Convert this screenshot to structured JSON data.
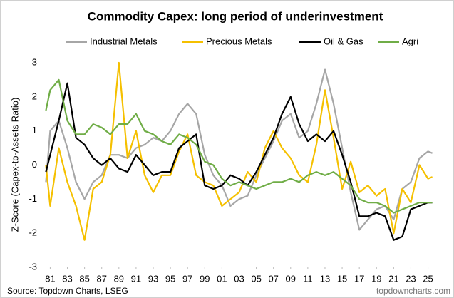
{
  "chart_data": {
    "type": "line",
    "title": "Commodity Capex: long period of underinvestment",
    "y_label": "Z-Score (Capex-to-Assets Ratio)",
    "source": "Source: Topdown Charts, LSEG",
    "watermark": "topdowncharts.com",
    "legend": "top",
    "x": [
      1980.5,
      1981,
      1982,
      1983,
      1984,
      1985,
      1986,
      1987,
      1988,
      1989,
      1990,
      1991,
      1992,
      1993,
      1994,
      1995,
      1996,
      1997,
      1998,
      1999,
      2000,
      2001,
      2002,
      2003,
      2004,
      2005,
      2006,
      2007,
      2008,
      2009,
      2010,
      2011,
      2012,
      2013,
      2014,
      2015,
      2016,
      2017,
      2018,
      2019,
      2020,
      2021,
      2022,
      2023,
      2024,
      2025,
      2025.5
    ],
    "xlim": [
      1980.3,
      2026.2
    ],
    "xticks": [
      {
        "value": 1981,
        "label": "81"
      },
      {
        "value": 1983,
        "label": "83"
      },
      {
        "value": 1985,
        "label": "85"
      },
      {
        "value": 1987,
        "label": "87"
      },
      {
        "value": 1989,
        "label": "89"
      },
      {
        "value": 1991,
        "label": "91"
      },
      {
        "value": 1993,
        "label": "93"
      },
      {
        "value": 1995,
        "label": "95"
      },
      {
        "value": 1997,
        "label": "97"
      },
      {
        "value": 1999,
        "label": "99"
      },
      {
        "value": 2001,
        "label": "01"
      },
      {
        "value": 2003,
        "label": "03"
      },
      {
        "value": 2005,
        "label": "05"
      },
      {
        "value": 2007,
        "label": "07"
      },
      {
        "value": 2009,
        "label": "09"
      },
      {
        "value": 2011,
        "label": "11"
      },
      {
        "value": 2013,
        "label": "13"
      },
      {
        "value": 2015,
        "label": "15"
      },
      {
        "value": 2017,
        "label": "17"
      },
      {
        "value": 2019,
        "label": "19"
      },
      {
        "value": 2021,
        "label": "21"
      },
      {
        "value": 2023,
        "label": "23"
      },
      {
        "value": 2025,
        "label": "25"
      }
    ],
    "ylim": [
      -3,
      3
    ],
    "yticks": [
      -3,
      -2,
      -1,
      0,
      1,
      2,
      3
    ],
    "series": [
      {
        "name": "Industrial Metals",
        "color": "#a6a6a6",
        "values": [
          -0.5,
          1.0,
          1.3,
          0.5,
          -0.5,
          -1.0,
          -0.5,
          -0.3,
          0.3,
          0.3,
          0.2,
          0.5,
          0.6,
          0.8,
          0.7,
          1.0,
          1.5,
          1.8,
          1.5,
          0.3,
          -0.3,
          -0.6,
          -1.2,
          -1.0,
          -0.9,
          -0.3,
          0.2,
          0.7,
          1.3,
          1.5,
          0.8,
          1.0,
          1.8,
          2.8,
          1.8,
          0.5,
          -0.8,
          -1.9,
          -1.6,
          -1.3,
          -1.2,
          -1.6,
          -0.7,
          -0.5,
          0.2,
          0.4,
          0.35
        ]
      },
      {
        "name": "Precious Metals",
        "color": "#f5c000",
        "values": [
          0.0,
          -1.2,
          0.5,
          -0.5,
          -1.2,
          -2.2,
          -0.7,
          -0.5,
          0.3,
          3.0,
          0.2,
          1.0,
          -0.3,
          -0.8,
          -0.3,
          -0.3,
          0.4,
          0.9,
          -0.3,
          -0.5,
          -0.6,
          -1.2,
          -1.0,
          -0.8,
          -0.2,
          -0.5,
          0.5,
          1.0,
          0.5,
          0.2,
          -0.3,
          -0.5,
          0.6,
          2.2,
          0.8,
          -0.7,
          0.1,
          -0.8,
          -0.6,
          -0.9,
          -0.7,
          -2.0,
          -0.7,
          -1.1,
          0.0,
          -0.4,
          -0.35
        ]
      },
      {
        "name": "Oil & Gas",
        "color": "#000000",
        "values": [
          -0.2,
          0.3,
          1.3,
          2.4,
          0.8,
          0.6,
          0.2,
          0.0,
          0.2,
          -0.1,
          -0.2,
          0.3,
          0.0,
          -0.3,
          -0.2,
          -0.2,
          0.5,
          0.7,
          0.9,
          -0.6,
          -0.7,
          -0.6,
          -0.3,
          -0.4,
          -0.6,
          -0.2,
          0.3,
          0.8,
          1.5,
          2.0,
          1.2,
          0.7,
          0.9,
          0.7,
          1.0,
          0.3,
          -0.5,
          -1.5,
          -1.5,
          -1.4,
          -1.5,
          -2.2,
          -2.1,
          -1.3,
          -1.2,
          -1.1,
          -1.1
        ]
      },
      {
        "name": "Agri",
        "color": "#70ad47",
        "values": [
          1.6,
          2.2,
          2.5,
          1.3,
          0.9,
          0.9,
          1.2,
          1.1,
          0.9,
          1.2,
          1.2,
          1.5,
          1.0,
          0.9,
          0.7,
          0.6,
          0.9,
          0.8,
          0.6,
          0.1,
          0.0,
          -0.4,
          -0.6,
          -0.5,
          -0.6,
          -0.7,
          -0.6,
          -0.5,
          -0.5,
          -0.4,
          -0.5,
          -0.3,
          -0.2,
          -0.3,
          -0.2,
          -0.4,
          -0.6,
          -1.0,
          -1.1,
          -1.1,
          -1.2,
          -1.4,
          -1.3,
          -1.2,
          -1.1,
          -1.1,
          -1.1
        ]
      }
    ]
  }
}
